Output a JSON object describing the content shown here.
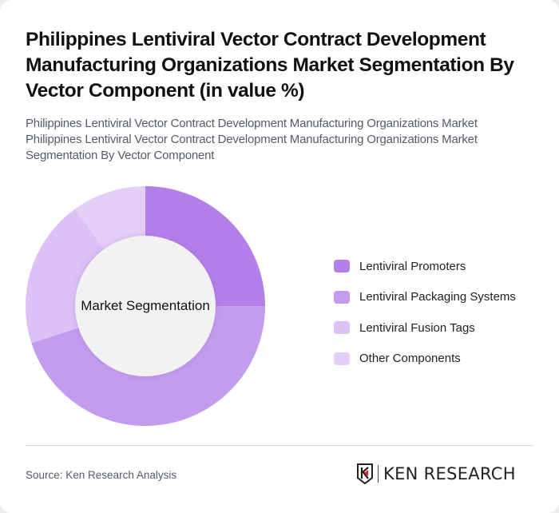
{
  "header": {
    "title": "Philippines Lentiviral Vector Contract Development Manufacturing Organizations Market Segmentation By Vector Component (in value %)",
    "subtitle": "Philippines Lentiviral Vector Contract Development Manufacturing Organizations Market Philippines Lentiviral Vector Contract Development Manufacturing Organizations Market Segmentation By Vector Component"
  },
  "chart_data": {
    "type": "pie",
    "variant": "donut",
    "title": "Philippines Lentiviral Vector Contract Development Manufacturing Organizations Market Segmentation By Vector Component (in value %)",
    "center_label": "Market Segmentation",
    "categories": [
      "Lentiviral Promoters",
      "Lentiviral Packaging Systems",
      "Lentiviral Fusion Tags",
      "Other Components"
    ],
    "values": [
      25,
      45,
      20,
      10
    ],
    "colors": [
      "#b47fe9",
      "#c49cee",
      "#dbc1f5",
      "#e4cff8"
    ],
    "legend_position": "right",
    "start_angle": 0,
    "direction": "clockwise"
  },
  "legend": {
    "items": [
      {
        "label": "Lentiviral Promoters",
        "color": "#b47fe9"
      },
      {
        "label": "Lentiviral Packaging Systems",
        "color": "#c49cee"
      },
      {
        "label": "Lentiviral Fusion Tags",
        "color": "#dbc1f5"
      },
      {
        "label": "Other Components",
        "color": "#e4cff8"
      }
    ]
  },
  "footer": {
    "source": "Source: Ken Research Analysis",
    "logo_text": "KEN RESEARCH"
  }
}
